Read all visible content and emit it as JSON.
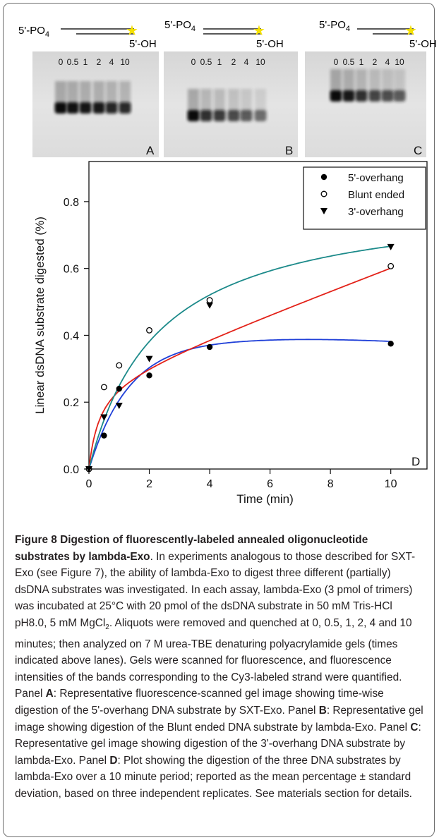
{
  "schematics": [
    {
      "five_prime_label": "5'-PO",
      "subscript": "4",
      "three_prime_label": "5'-OH",
      "star": "★"
    },
    {
      "five_prime_label": "5'-PO",
      "subscript": "4",
      "three_prime_label": "5'-OH",
      "star": "★"
    },
    {
      "five_prime_label": "5'-PO",
      "subscript": "4",
      "three_prime_label": "5'-OH",
      "star": "★"
    }
  ],
  "gels": [
    {
      "panel": "A",
      "lane_labels": [
        "0",
        "0.5",
        "1",
        "2",
        "4",
        "10"
      ],
      "band_intensity": [
        1.0,
        0.95,
        0.92,
        0.9,
        0.88,
        0.85
      ]
    },
    {
      "panel": "B",
      "lane_labels": [
        "0",
        "0.5",
        "1",
        "2",
        "4",
        "10"
      ],
      "band_intensity": [
        1.0,
        0.8,
        0.72,
        0.65,
        0.55,
        0.42
      ]
    },
    {
      "panel": "C",
      "lane_labels": [
        "0",
        "0.5",
        "1",
        "2",
        "4",
        "10"
      ],
      "band_intensity": [
        1.0,
        0.9,
        0.8,
        0.7,
        0.62,
        0.55
      ]
    }
  ],
  "chart_data": {
    "type": "scatter",
    "panel": "D",
    "xlabel": "Time (min)",
    "ylabel": "Linear dsDNA substrate digested (%)",
    "xlim": [
      0,
      11.2
    ],
    "ylim": [
      0,
      0.92
    ],
    "xticks": [
      0,
      2,
      4,
      6,
      8,
      10
    ],
    "yticks": [
      0.0,
      0.2,
      0.4,
      0.6,
      0.8
    ],
    "ytick_labels": [
      "0.0",
      "0.2",
      "0.4",
      "0.6",
      "0.8"
    ],
    "legend_position": "top-right",
    "series": [
      {
        "name": "5'-overhang",
        "marker": "filled-circle",
        "color": "#1f3fd8",
        "x": [
          0,
          0.5,
          1,
          2,
          4,
          10
        ],
        "y": [
          0.0,
          0.1,
          0.24,
          0.28,
          0.365,
          0.375
        ]
      },
      {
        "name": "Blunt ended",
        "marker": "open-circle",
        "color": "#e32219",
        "x": [
          0,
          0.5,
          1,
          2,
          4,
          10
        ],
        "y": [
          0.0,
          0.245,
          0.31,
          0.415,
          0.505,
          0.607
        ]
      },
      {
        "name": "3'-overhang",
        "marker": "filled-triangle",
        "color": "#1c8a8a",
        "x": [
          0,
          0.5,
          1,
          2,
          4,
          10
        ],
        "y": [
          0.0,
          0.155,
          0.19,
          0.33,
          0.49,
          0.665
        ]
      }
    ]
  },
  "caption": {
    "title": "Figure 8 Digestion of fluorescently-labeled annealed oligonucleotide substrates by lambda-Exo",
    "body_1": ". In experiments analogous to those described for SXT-Exo (see Figure 7), the ability of lambda-Exo to digest three different (partially) dsDNA substrates was investigated. In each assay, lambda-Exo (3 pmol of trimers) was incubated at 25°C with 20 pmol of the dsDNA substrate in 50 mM Tris-HCl pH8.0, 5 mM MgCl",
    "mgcl_sub": "2",
    "body_2": ". Aliquots were removed and quenched at 0, 0.5, 1, 2, 4 and 10 minutes; then analyzed on 7 M urea-TBE denaturing polyacrylamide gels (times indicated above lanes). Gels were scanned for fluorescence, and fluorescence intensities of the bands corresponding to the Cy3-labeled strand were quantified. Panel ",
    "panel_a": "A",
    "text_a": ": Representative fluorescence-scanned gel image showing time-wise digestion of the 5'-overhang DNA substrate by SXT-Exo. Panel ",
    "panel_b": "B",
    "text_b": ": Representative gel image showing digestion of the Blunt ended DNA substrate by lambda-Exo. Panel ",
    "panel_c": "C",
    "text_c": ": Representative gel image showing digestion of the 3'-overhang DNA substrate by lambda-Exo. Panel ",
    "panel_d": "D",
    "text_d": ": Plot showing the digestion of the three DNA substrates by lambda-Exo over a 10 minute period; reported as the mean percentage ± standard deviation, based on three independent replicates. See materials section for details."
  }
}
